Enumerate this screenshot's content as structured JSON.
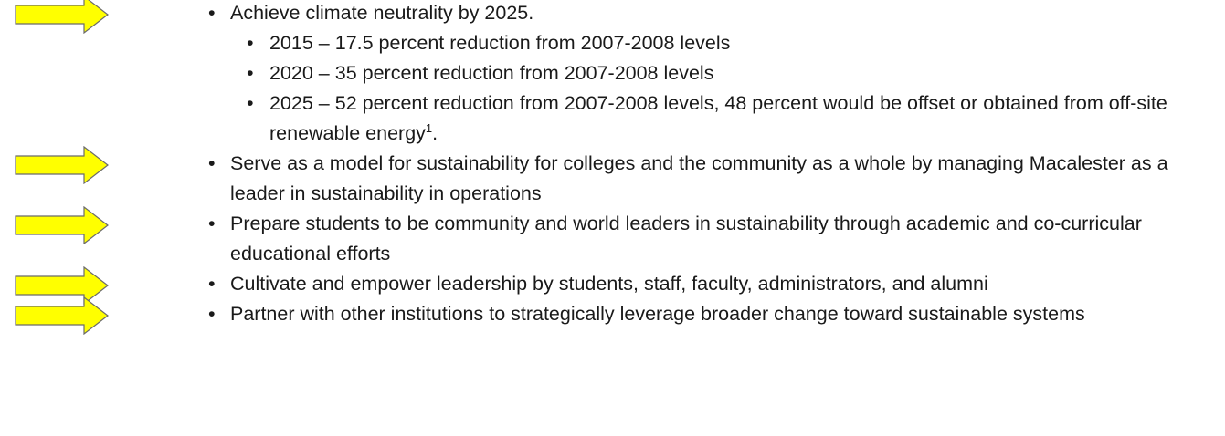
{
  "items": [
    {
      "text": "Achieve climate neutrality by 2025.",
      "subitems": [
        {
          "text": "2015 – 17.5 percent reduction from 2007-2008 levels"
        },
        {
          "text": "2020 – 35 percent reduction from 2007-2008 levels"
        },
        {
          "text": "2025 – 52 percent reduction from 2007-2008 levels, 48 percent would be offset or obtained from off-site renewable energy",
          "footnote": "1",
          "after": "."
        }
      ]
    },
    {
      "text": "Serve as a model for sustainability for colleges and the community as a whole by managing Macalester as a leader in sustainability in operations"
    },
    {
      "text": "Prepare students to be community and world leaders in sustainability through academic and co-curricular educational efforts"
    },
    {
      "text": "Cultivate and empower leadership by students, staff, faculty, administrators, and alumni"
    },
    {
      "text": "Partner with other institutions to strategically leverage broader change toward sustainable systems"
    }
  ]
}
